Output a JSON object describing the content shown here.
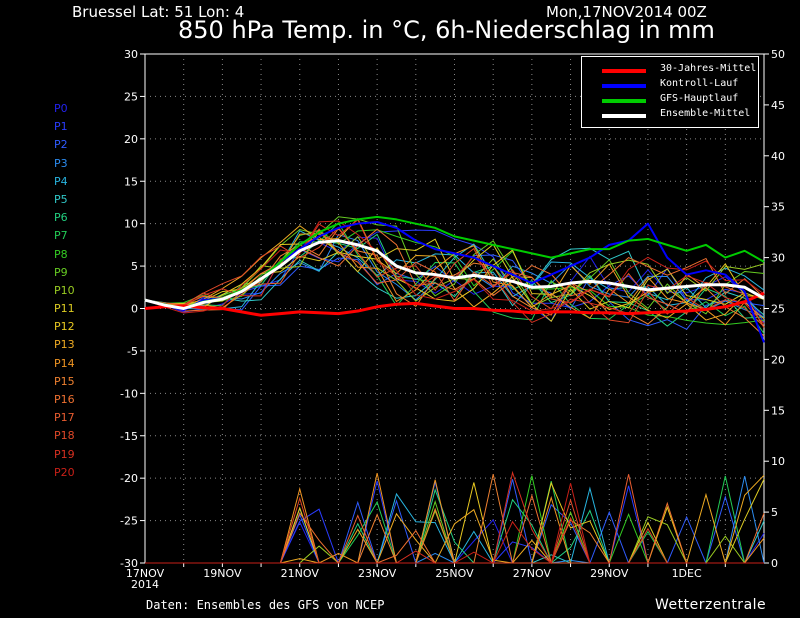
{
  "header": {
    "location": "Bruessel   Lat: 51 Lon: 4",
    "run": "Mon,17NOV2014 00Z",
    "title": "850 hPa Temp. in °C, 6h-Niederschlag in mm"
  },
  "footer": {
    "source": "Daten: Ensembles des GFS von NCEP",
    "brand": "Wetterzentrale"
  },
  "members": [
    {
      "label": "P0",
      "color": "#2222ee"
    },
    {
      "label": "P1",
      "color": "#2a3cff"
    },
    {
      "label": "P2",
      "color": "#2f5cff"
    },
    {
      "label": "P3",
      "color": "#2c8cf0"
    },
    {
      "label": "P4",
      "color": "#28b4e0"
    },
    {
      "label": "P5",
      "color": "#30c8c8"
    },
    {
      "label": "P6",
      "color": "#22d080"
    },
    {
      "label": "P7",
      "color": "#22cc55"
    },
    {
      "label": "P8",
      "color": "#33cc22"
    },
    {
      "label": "P9",
      "color": "#66cc22"
    },
    {
      "label": "P10",
      "color": "#99cc22"
    },
    {
      "label": "P11",
      "color": "#ddcc22"
    },
    {
      "label": "P12",
      "color": "#e8c820"
    },
    {
      "label": "P13",
      "color": "#eeaa22"
    },
    {
      "label": "P14",
      "color": "#f09522"
    },
    {
      "label": "P15",
      "color": "#ee8030"
    },
    {
      "label": "P16",
      "color": "#ee7030"
    },
    {
      "label": "P17",
      "color": "#e85c30"
    },
    {
      "label": "P18",
      "color": "#e04828"
    },
    {
      "label": "P19",
      "color": "#d83020"
    },
    {
      "label": "P20",
      "color": "#c82018"
    }
  ],
  "legend": [
    {
      "label": "30-Jahres-Mittel",
      "color": "#ff0000"
    },
    {
      "label": "Kontroll-Lauf",
      "color": "#0000ff"
    },
    {
      "label": "GFS-Hauptlauf",
      "color": "#00cc00"
    },
    {
      "label": "Ensemble-Mittel",
      "color": "#ffffff"
    }
  ],
  "chart_data": {
    "type": "line",
    "y_left": {
      "min": -30,
      "max": 30,
      "step": 5,
      "label": ""
    },
    "y_right": {
      "min": 0,
      "max": 50,
      "step": 5,
      "label": ""
    },
    "x_ticks": [
      {
        "day": 0,
        "label": "17NOV",
        "label2": "2014"
      },
      {
        "day": 2,
        "label": "19NOV"
      },
      {
        "day": 4,
        "label": "21NOV"
      },
      {
        "day": 6,
        "label": "23NOV"
      },
      {
        "day": 8,
        "label": "25NOV"
      },
      {
        "day": 10,
        "label": "27NOV"
      },
      {
        "day": 12,
        "label": "29NOV"
      },
      {
        "day": 14,
        "label": "1DEC"
      }
    ],
    "x_range_days": [
      0,
      16
    ],
    "grid": true,
    "series": [
      {
        "name": "30-Jahres-Mittel",
        "color": "#ff0000",
        "width": 3,
        "x": [
          0,
          0.5,
          1,
          1.5,
          2,
          2.5,
          3,
          3.5,
          4,
          4.5,
          5,
          5.5,
          6,
          6.5,
          7,
          7.5,
          8,
          8.5,
          9,
          9.5,
          10,
          10.5,
          11,
          11.5,
          12,
          12.5,
          13,
          13.5,
          14,
          14.5,
          15,
          15.5,
          16
        ],
        "y": [
          0,
          0.2,
          0.3,
          0.1,
          0,
          -0.4,
          -0.8,
          -0.6,
          -0.4,
          -0.5,
          -0.6,
          -0.3,
          0.2,
          0.5,
          0.6,
          0.3,
          0,
          0,
          -0.2,
          -0.3,
          -0.5,
          -0.4,
          -0.4,
          -0.5,
          -0.5,
          -0.6,
          -0.5,
          -0.4,
          -0.3,
          -0.1,
          0.2,
          0.8,
          1.8
        ]
      },
      {
        "name": "Kontroll-Lauf",
        "color": "#0000ff",
        "width": 2,
        "x": [
          0,
          0.5,
          1,
          1.5,
          2,
          2.5,
          3,
          3.5,
          4,
          4.5,
          5,
          5.5,
          6,
          6.5,
          7,
          7.5,
          8,
          8.5,
          9,
          9.5,
          10,
          10.5,
          11,
          11.5,
          12,
          12.5,
          13,
          13.5,
          14,
          14.5,
          15,
          15.5,
          16
        ],
        "y": [
          1,
          0.5,
          -0.2,
          1,
          1.2,
          2,
          3.5,
          5.5,
          7,
          8.5,
          9.5,
          10,
          10.2,
          9.5,
          8,
          7,
          6.5,
          6,
          5,
          4,
          3,
          4,
          5,
          6,
          7.5,
          8,
          10,
          6,
          4,
          4.5,
          4,
          2,
          -4
        ]
      },
      {
        "name": "GFS-Hauptlauf",
        "color": "#00cc00",
        "width": 2,
        "x": [
          0,
          0.5,
          1,
          1.5,
          2,
          2.5,
          3,
          3.5,
          4,
          4.5,
          5,
          5.5,
          6,
          6.5,
          7,
          7.5,
          8,
          8.5,
          9,
          9.5,
          10,
          10.5,
          11,
          11.5,
          12,
          12.5,
          13,
          13.5,
          14,
          14.5,
          15,
          15.5,
          16
        ],
        "y": [
          1,
          0.5,
          0,
          0.8,
          1.2,
          2.2,
          3.5,
          5.5,
          7.5,
          9,
          10,
          10.5,
          10.8,
          10.5,
          10,
          9.5,
          8.5,
          8,
          7.5,
          7,
          6.5,
          6,
          6.5,
          7,
          7,
          8,
          8.2,
          7.5,
          6.8,
          7.5,
          6,
          6.8,
          5.5
        ]
      },
      {
        "name": "Ensemble-Mittel",
        "color": "#ffffff",
        "width": 3,
        "x": [
          0,
          0.5,
          1,
          1.5,
          2,
          2.5,
          3,
          3.5,
          4,
          4.5,
          5,
          5.5,
          6,
          6.5,
          7,
          7.5,
          8,
          8.5,
          9,
          9.5,
          10,
          10.5,
          11,
          11.5,
          12,
          12.5,
          13,
          13.5,
          14,
          14.5,
          15,
          15.5,
          16
        ],
        "y": [
          1,
          0.4,
          0,
          0.7,
          1.1,
          2,
          3.5,
          5,
          6.8,
          7.8,
          8,
          7.5,
          6.8,
          5,
          4.2,
          4,
          3.6,
          3.9,
          3.6,
          3.2,
          2.5,
          2.6,
          3,
          3.2,
          3,
          2.6,
          2.2,
          2.4,
          2.6,
          2.8,
          2.8,
          2.5,
          1.2
        ]
      }
    ]
  }
}
